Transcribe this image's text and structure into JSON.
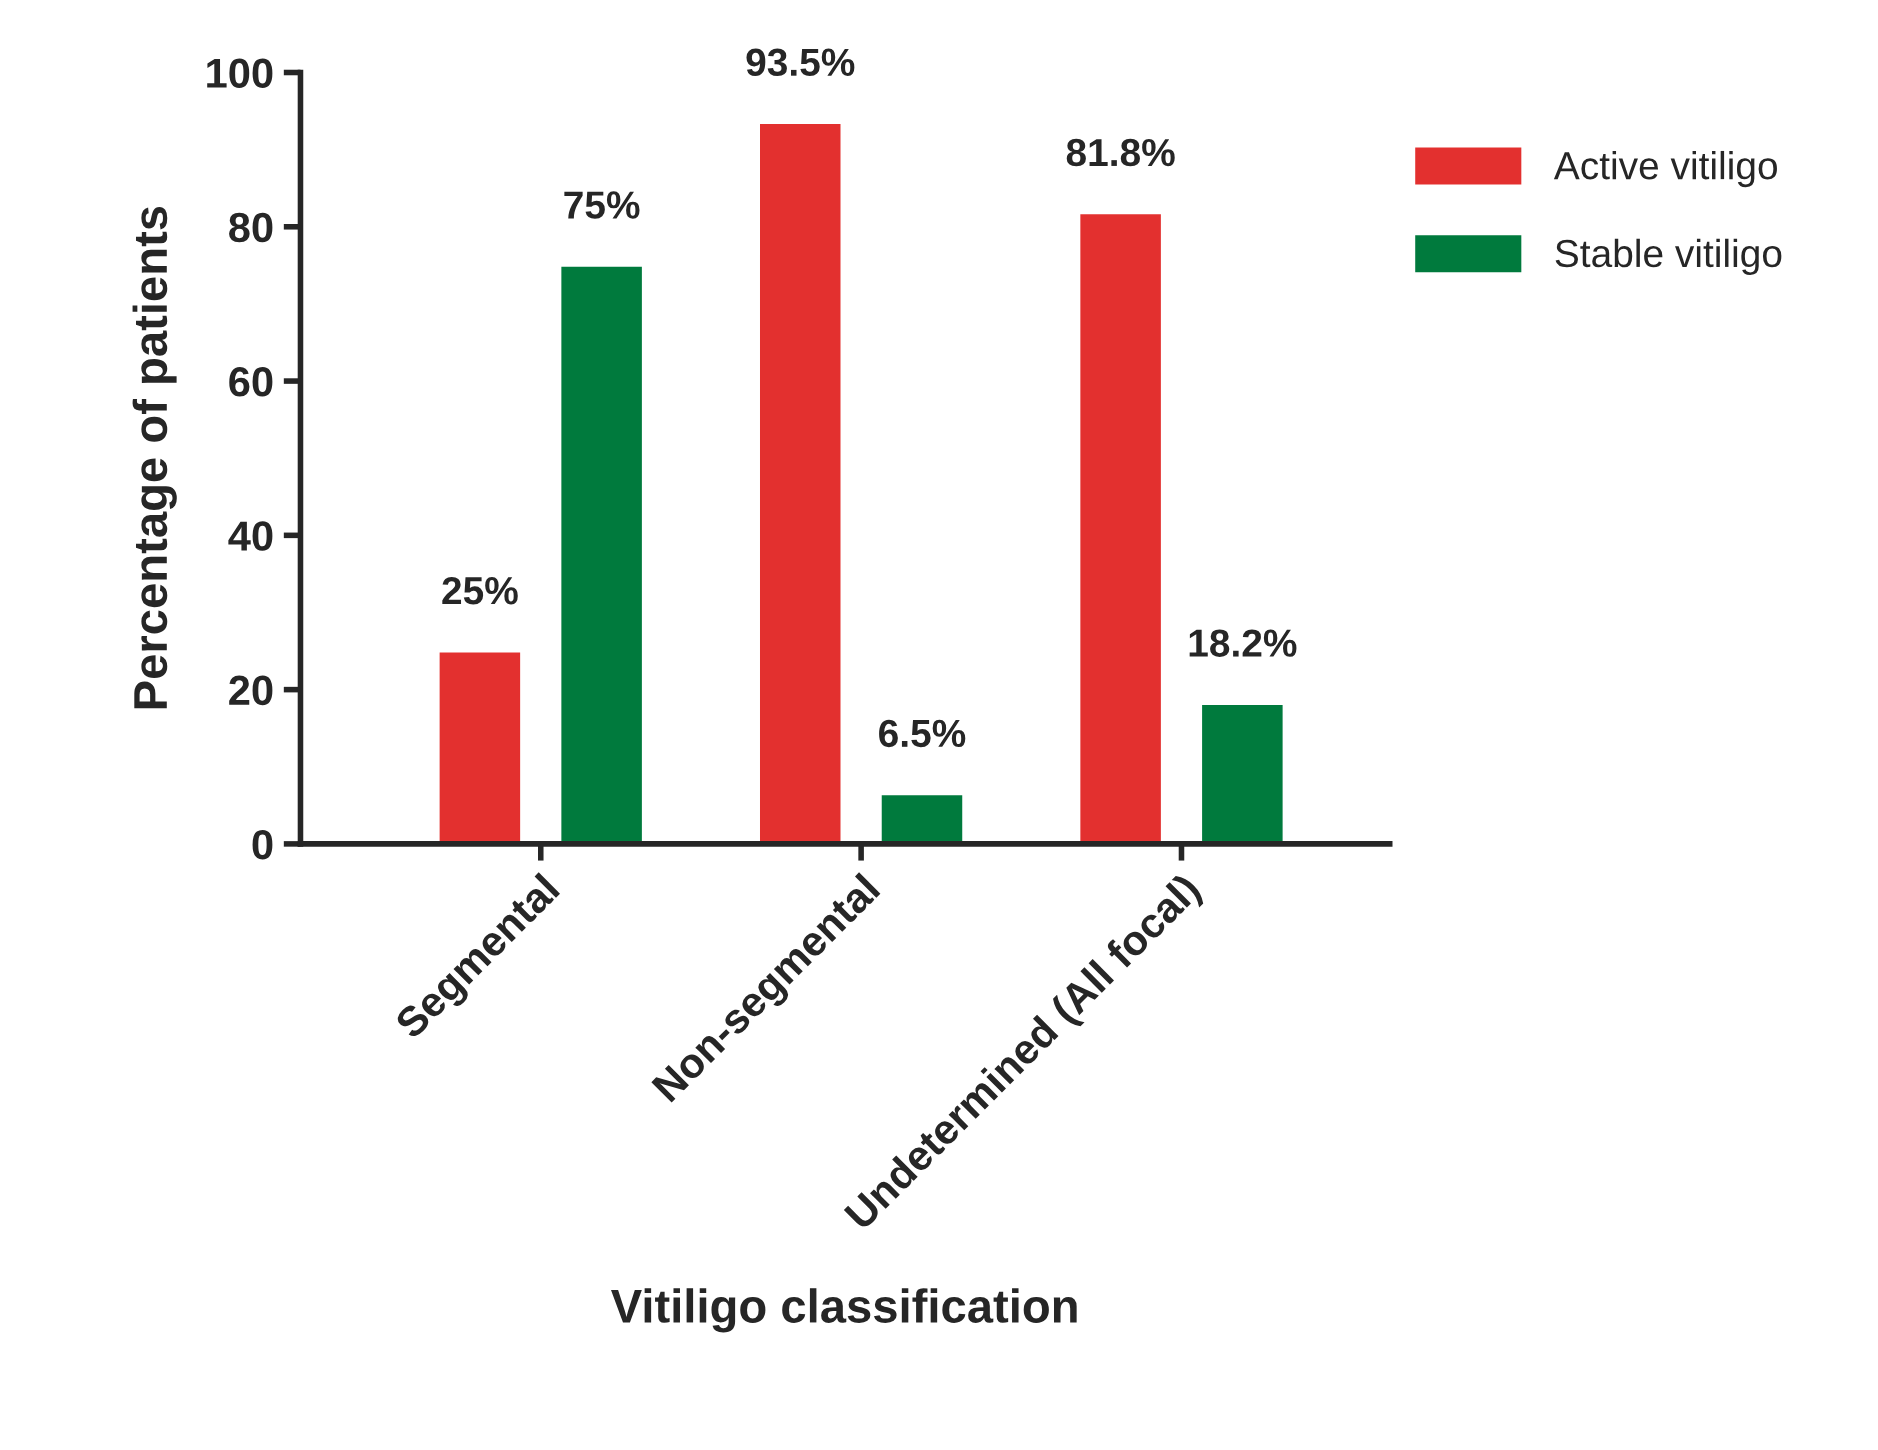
{
  "chart_data": {
    "type": "bar",
    "xlabel": "Vitiligo classification",
    "ylabel": "Percentage of patients",
    "categories": [
      "Segmental",
      "Non-segmental",
      "Undetermined (All focal)"
    ],
    "series": [
      {
        "name": "Active vitiligo",
        "color": "#e3302f",
        "values": [
          25,
          93.5,
          81.8
        ],
        "value_labels": [
          "25%",
          "93.5%",
          "81.8%"
        ]
      },
      {
        "name": "Stable vitiligo",
        "color": "#007a3d",
        "values": [
          75,
          6.5,
          18.2
        ],
        "value_labels": [
          "75%",
          "6.5%",
          "18.2%"
        ]
      }
    ],
    "ylim": [
      0,
      100
    ],
    "yticks": [
      0,
      20,
      40,
      60,
      80,
      100
    ],
    "grid": false,
    "legend": "right"
  }
}
